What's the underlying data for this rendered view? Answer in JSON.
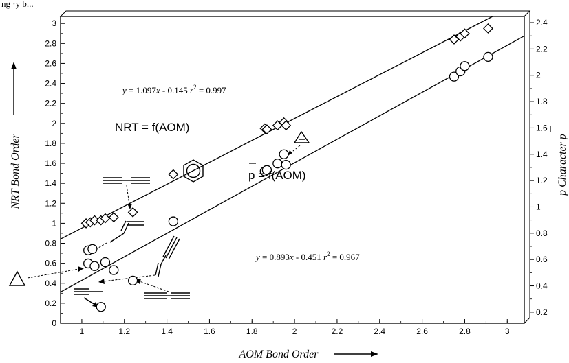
{
  "chart_data": {
    "type": "scatter",
    "xlabel": "AOM Bond Order",
    "ylabel": "NRT Bond Order",
    "y2label": "p Character p",
    "xlim": [
      0.9,
      3.08
    ],
    "ylim": [
      0,
      3.07
    ],
    "y2lim": [
      0.116,
      2.447
    ],
    "xticks": [
      "1",
      "1.2",
      "1.4",
      "1.6",
      "1.8",
      "2",
      "2.2",
      "2.4",
      "2.6",
      "2.8",
      "3"
    ],
    "yticks": [
      "0",
      "0.2",
      "0.4",
      "0.6",
      "0.8",
      "1",
      "1.2",
      "1.4",
      "1.6",
      "1.8",
      "2",
      "2.2",
      "2.4",
      "2.6",
      "2.8",
      "3"
    ],
    "y2ticks": [
      "0.2",
      "0.4",
      "0.6",
      "0.8",
      "1",
      "1.2",
      "1.4",
      "1.6",
      "1.8",
      "2",
      "2.2",
      "2.4"
    ],
    "series": [
      {
        "label": "NRT = f(AOM)",
        "marker": "diamond",
        "x": [
          1.02,
          1.04,
          1.06,
          1.09,
          1.11,
          1.15,
          1.24,
          1.43,
          1.86,
          1.87,
          1.92,
          1.95,
          1.96,
          2.75,
          2.78,
          2.8,
          2.91
        ],
        "y": [
          1.0,
          1.01,
          1.03,
          1.03,
          1.05,
          1.06,
          1.11,
          1.49,
          1.95,
          1.94,
          1.98,
          2.01,
          1.98,
          2.84,
          2.87,
          2.9,
          2.95
        ]
      },
      {
        "label": "p = f(AOM)",
        "marker": "circle",
        "x": [
          1.03,
          1.05,
          1.03,
          1.06,
          1.11,
          1.15,
          1.24,
          1.43,
          1.86,
          1.87,
          1.92,
          1.95,
          1.96,
          2.75,
          2.78,
          2.8,
          2.91
        ],
        "y2": [
          0.67,
          0.68,
          0.57,
          0.55,
          0.58,
          0.52,
          0.44,
          0.89,
          1.27,
          1.28,
          1.33,
          1.4,
          1.32,
          1.99,
          2.03,
          2.07,
          2.14
        ]
      },
      {
        "label": "p outlier",
        "marker": "circle",
        "x": [
          1.09
        ],
        "y2": [
          0.24
        ]
      }
    ],
    "fit_lines": [
      {
        "axis": "y",
        "slope": 1.097,
        "intercept": -0.145,
        "label": "y = 1.097x - 0.145   r² = 0.997"
      },
      {
        "axis": "y2",
        "slope": 0.893,
        "intercept": -0.451,
        "label": "y = 0.893x - 0.451   r² = 0.967"
      }
    ],
    "annotations": {
      "nrt_label": "NRT  = f(AOM)",
      "p_label": "p  = f(AOM)",
      "p_letter": "p"
    },
    "equations": {
      "nrt": {
        "y": "y",
        "eq": " = 1.097",
        "x": "x",
        "rest": " - 0.145   ",
        "r": "r",
        "two": "2",
        "val": " = 0.997"
      },
      "p": {
        "y": "y",
        "eq": " = 0.893",
        "x": "x",
        "rest": " - 0.451   ",
        "r": "r",
        "two": "2",
        "val": " = 0.967"
      }
    },
    "top_text": "ng ·y b...",
    "grid": false,
    "legend": "none"
  }
}
